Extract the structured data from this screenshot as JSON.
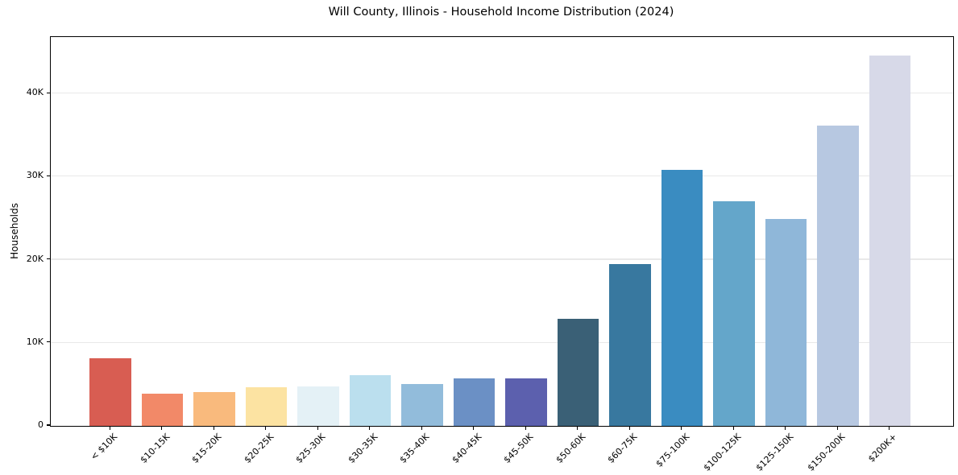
{
  "page": {
    "title": "Will County, Illinois - Household Income Distribution (2024)"
  },
  "chart_data": {
    "type": "bar",
    "title": "Will County, Illinois - Household Income Distribution (2024)",
    "xlabel": "",
    "ylabel": "Households",
    "categories": [
      "< $10K",
      "$10-15K",
      "$15-20K",
      "$20-25K",
      "$25-30K",
      "$30-35K",
      "$35-40K",
      "$40-45K",
      "$45-50K",
      "$50-60K",
      "$60-75K",
      "$75-100K",
      "$100-125K",
      "$125-150K",
      "$150-200K",
      "$200K+"
    ],
    "values": [
      8150,
      3900,
      4100,
      4650,
      4750,
      6100,
      5050,
      5700,
      5700,
      12900,
      19450,
      30850,
      27000,
      24950,
      36150,
      44600
    ],
    "bar_colors": [
      "#d85d52",
      "#f28968",
      "#f9ba7d",
      "#fce3a2",
      "#e4f1f6",
      "#bbdfee",
      "#92bcdb",
      "#6b90c5",
      "#5c60ae",
      "#3a6076",
      "#38789f",
      "#3a8cc1",
      "#64a6ca",
      "#8fb7d9",
      "#b7c8e1",
      "#d7d9e8"
    ],
    "ylim": [
      0,
      46800
    ],
    "yticks": [
      {
        "value": 0,
        "label": "0"
      },
      {
        "value": 10000,
        "label": "10K"
      },
      {
        "value": 20000,
        "label": "20K"
      },
      {
        "value": 30000,
        "label": "30K"
      },
      {
        "value": 40000,
        "label": "40K"
      }
    ],
    "grid": "horizontal",
    "legend": "none",
    "background_color": "#ffffff",
    "frame_color": "#000000",
    "gridline_color": "#e9e9e9",
    "tick_label_rotation_deg": 45
  }
}
